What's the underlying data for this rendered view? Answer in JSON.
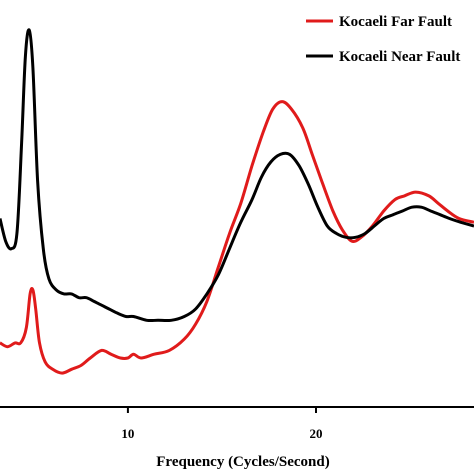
{
  "chart_data": {
    "type": "line",
    "title": "",
    "xlabel": "Frequency (Cycles/Second)",
    "ylabel": "",
    "xlim": [
      3.2,
      28.4
    ],
    "ylim": [
      0,
      1
    ],
    "x_ticks": [
      {
        "value": 10,
        "label": "10"
      },
      {
        "value": 20,
        "label": "20"
      }
    ],
    "legend": "top-right",
    "series": [
      {
        "name": "Kocaeli Far Fault",
        "color": "#e01b1b",
        "points": [
          [
            3.2,
            0.17
          ],
          [
            3.6,
            0.16
          ],
          [
            4.0,
            0.17
          ],
          [
            4.3,
            0.17
          ],
          [
            4.6,
            0.21
          ],
          [
            4.8,
            0.3
          ],
          [
            4.95,
            0.31
          ],
          [
            5.1,
            0.26
          ],
          [
            5.3,
            0.17
          ],
          [
            5.6,
            0.12
          ],
          [
            6.0,
            0.1
          ],
          [
            6.5,
            0.09
          ],
          [
            7.0,
            0.1
          ],
          [
            7.5,
            0.11
          ],
          [
            8.0,
            0.13
          ],
          [
            8.6,
            0.15
          ],
          [
            9.1,
            0.14
          ],
          [
            9.6,
            0.13
          ],
          [
            10.0,
            0.13
          ],
          [
            10.3,
            0.14
          ],
          [
            10.7,
            0.13
          ],
          [
            11.4,
            0.14
          ],
          [
            12.2,
            0.15
          ],
          [
            13.0,
            0.18
          ],
          [
            13.6,
            0.22
          ],
          [
            14.2,
            0.28
          ],
          [
            14.8,
            0.37
          ],
          [
            15.4,
            0.46
          ],
          [
            16.0,
            0.54
          ],
          [
            16.6,
            0.64
          ],
          [
            17.2,
            0.73
          ],
          [
            17.7,
            0.79
          ],
          [
            18.2,
            0.81
          ],
          [
            18.7,
            0.79
          ],
          [
            19.3,
            0.74
          ],
          [
            19.8,
            0.67
          ],
          [
            20.3,
            0.6
          ],
          [
            20.9,
            0.52
          ],
          [
            21.4,
            0.47
          ],
          [
            21.9,
            0.44
          ],
          [
            22.4,
            0.45
          ],
          [
            23.0,
            0.48
          ],
          [
            23.6,
            0.52
          ],
          [
            24.2,
            0.55
          ],
          [
            24.7,
            0.56
          ],
          [
            25.3,
            0.57
          ],
          [
            26.0,
            0.56
          ],
          [
            26.5,
            0.54
          ],
          [
            27.0,
            0.52
          ],
          [
            27.6,
            0.5
          ],
          [
            28.4,
            0.49
          ]
        ]
      },
      {
        "name": "Kocaeli Near Fault",
        "color": "#000000",
        "points": [
          [
            3.2,
            0.5
          ],
          [
            3.5,
            0.44
          ],
          [
            3.8,
            0.42
          ],
          [
            4.1,
            0.46
          ],
          [
            4.35,
            0.7
          ],
          [
            4.55,
            0.93
          ],
          [
            4.75,
            1.0
          ],
          [
            4.95,
            0.9
          ],
          [
            5.2,
            0.6
          ],
          [
            5.5,
            0.42
          ],
          [
            5.8,
            0.34
          ],
          [
            6.2,
            0.31
          ],
          [
            6.6,
            0.3
          ],
          [
            7.0,
            0.3
          ],
          [
            7.4,
            0.29
          ],
          [
            7.8,
            0.29
          ],
          [
            8.2,
            0.28
          ],
          [
            8.6,
            0.27
          ],
          [
            9.0,
            0.26
          ],
          [
            9.4,
            0.25
          ],
          [
            9.9,
            0.24
          ],
          [
            10.3,
            0.24
          ],
          [
            11.0,
            0.23
          ],
          [
            11.6,
            0.23
          ],
          [
            12.3,
            0.23
          ],
          [
            13.0,
            0.24
          ],
          [
            13.6,
            0.26
          ],
          [
            14.2,
            0.3
          ],
          [
            14.8,
            0.35
          ],
          [
            15.4,
            0.42
          ],
          [
            16.0,
            0.49
          ],
          [
            16.6,
            0.55
          ],
          [
            17.1,
            0.61
          ],
          [
            17.6,
            0.65
          ],
          [
            18.1,
            0.67
          ],
          [
            18.6,
            0.67
          ],
          [
            19.1,
            0.64
          ],
          [
            19.6,
            0.59
          ],
          [
            20.1,
            0.53
          ],
          [
            20.6,
            0.48
          ],
          [
            21.1,
            0.46
          ],
          [
            21.6,
            0.45
          ],
          [
            22.1,
            0.45
          ],
          [
            22.6,
            0.46
          ],
          [
            23.1,
            0.48
          ],
          [
            23.6,
            0.5
          ],
          [
            24.1,
            0.51
          ],
          [
            24.6,
            0.52
          ],
          [
            25.1,
            0.53
          ],
          [
            25.6,
            0.53
          ],
          [
            26.1,
            0.52
          ],
          [
            26.6,
            0.51
          ],
          [
            27.1,
            0.5
          ],
          [
            27.7,
            0.49
          ],
          [
            28.4,
            0.48
          ]
        ]
      }
    ]
  }
}
